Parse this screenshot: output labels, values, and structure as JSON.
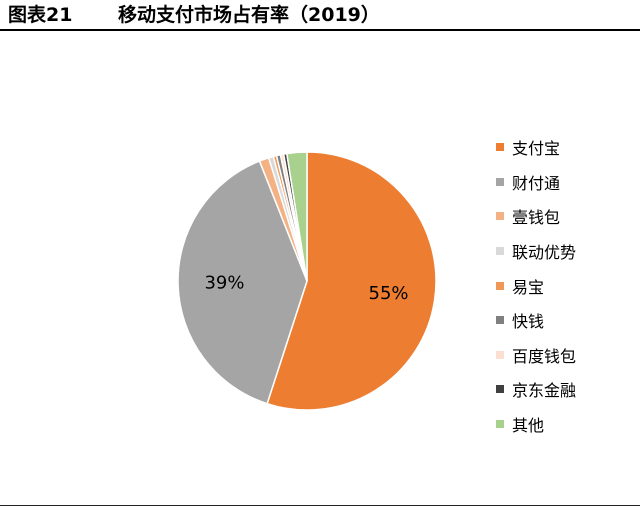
{
  "figure": {
    "number": "图表21",
    "title": "移动支付市场占有率（2019）"
  },
  "chart_data": {
    "type": "pie",
    "title": "移动支付市场占有率（2019）",
    "legend_position": "right",
    "slices": [
      {
        "name": "支付宝",
        "value": 55.0,
        "label": "55%",
        "color": "#ED7D31"
      },
      {
        "name": "财付通",
        "value": 39.0,
        "label": "39%",
        "color": "#A5A5A5"
      },
      {
        "name": "壹钱包",
        "value": 1.2,
        "label": "",
        "color": "#F4B183"
      },
      {
        "name": "联动优势",
        "value": 0.6,
        "label": "",
        "color": "#D9D9D9"
      },
      {
        "name": "易宝",
        "value": 0.4,
        "label": "",
        "color": "#F09857"
      },
      {
        "name": "快钱",
        "value": 0.5,
        "label": "",
        "color": "#808080"
      },
      {
        "name": "百度钱包",
        "value": 0.4,
        "label": "",
        "color": "#FBE0D2"
      },
      {
        "name": "京东金融",
        "value": 0.4,
        "label": "",
        "color": "#404040"
      },
      {
        "name": "其他",
        "value": 2.5,
        "label": "",
        "color": "#A9D18E"
      }
    ]
  }
}
